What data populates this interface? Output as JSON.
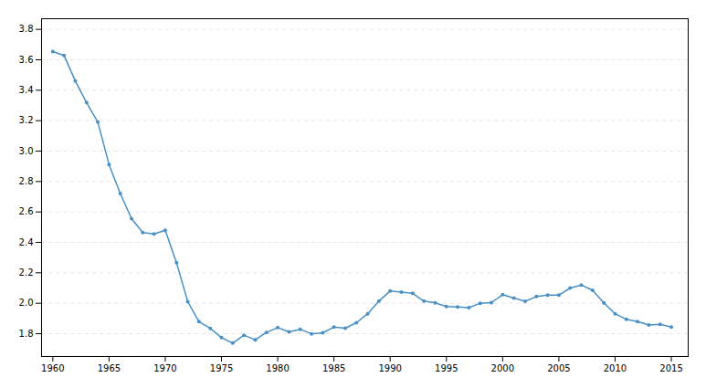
{
  "chart_data": {
    "type": "line",
    "x": [
      1960,
      1961,
      1962,
      1963,
      1964,
      1965,
      1966,
      1967,
      1968,
      1969,
      1970,
      1971,
      1972,
      1973,
      1974,
      1975,
      1976,
      1977,
      1978,
      1979,
      1980,
      1981,
      1982,
      1983,
      1984,
      1985,
      1986,
      1987,
      1988,
      1989,
      1990,
      1991,
      1992,
      1993,
      1994,
      1995,
      1996,
      1997,
      1998,
      1999,
      2000,
      2001,
      2002,
      2003,
      2004,
      2005,
      2006,
      2007,
      2008,
      2009,
      2010,
      2011,
      2012,
      2013,
      2014,
      2015
    ],
    "values": [
      3.654,
      3.629,
      3.461,
      3.319,
      3.191,
      2.912,
      2.721,
      2.556,
      2.464,
      2.455,
      2.48,
      2.267,
      2.01,
      1.879,
      1.835,
      1.774,
      1.738,
      1.79,
      1.76,
      1.808,
      1.84,
      1.812,
      1.829,
      1.799,
      1.806,
      1.843,
      1.836,
      1.872,
      1.931,
      2.014,
      2.081,
      2.073,
      2.065,
      2.014,
      2.002,
      1.979,
      1.976,
      1.971,
      2.0,
      2.004,
      2.056,
      2.034,
      2.013,
      2.044,
      2.054,
      2.053,
      2.1,
      2.12,
      2.085,
      2.002,
      1.931,
      1.894,
      1.88,
      1.857,
      1.862,
      1.843
    ],
    "color": "#4a90c4",
    "marker": "circle",
    "xlim": [
      1959.0,
      2016.5
    ],
    "xticks": [
      1960,
      1965,
      1970,
      1975,
      1980,
      1985,
      1990,
      1995,
      2000,
      2005,
      2010,
      2015
    ],
    "ylim": [
      1.65,
      3.87
    ],
    "yticks": [
      1.8,
      {
        "value": 2.0,
        "label": "2.0"
      },
      2.2,
      2.4,
      2.6,
      2.8,
      {
        "value": 3.0,
        "label": "3.0"
      },
      3.2,
      3.4,
      3.6,
      3.8
    ],
    "grid": true
  }
}
